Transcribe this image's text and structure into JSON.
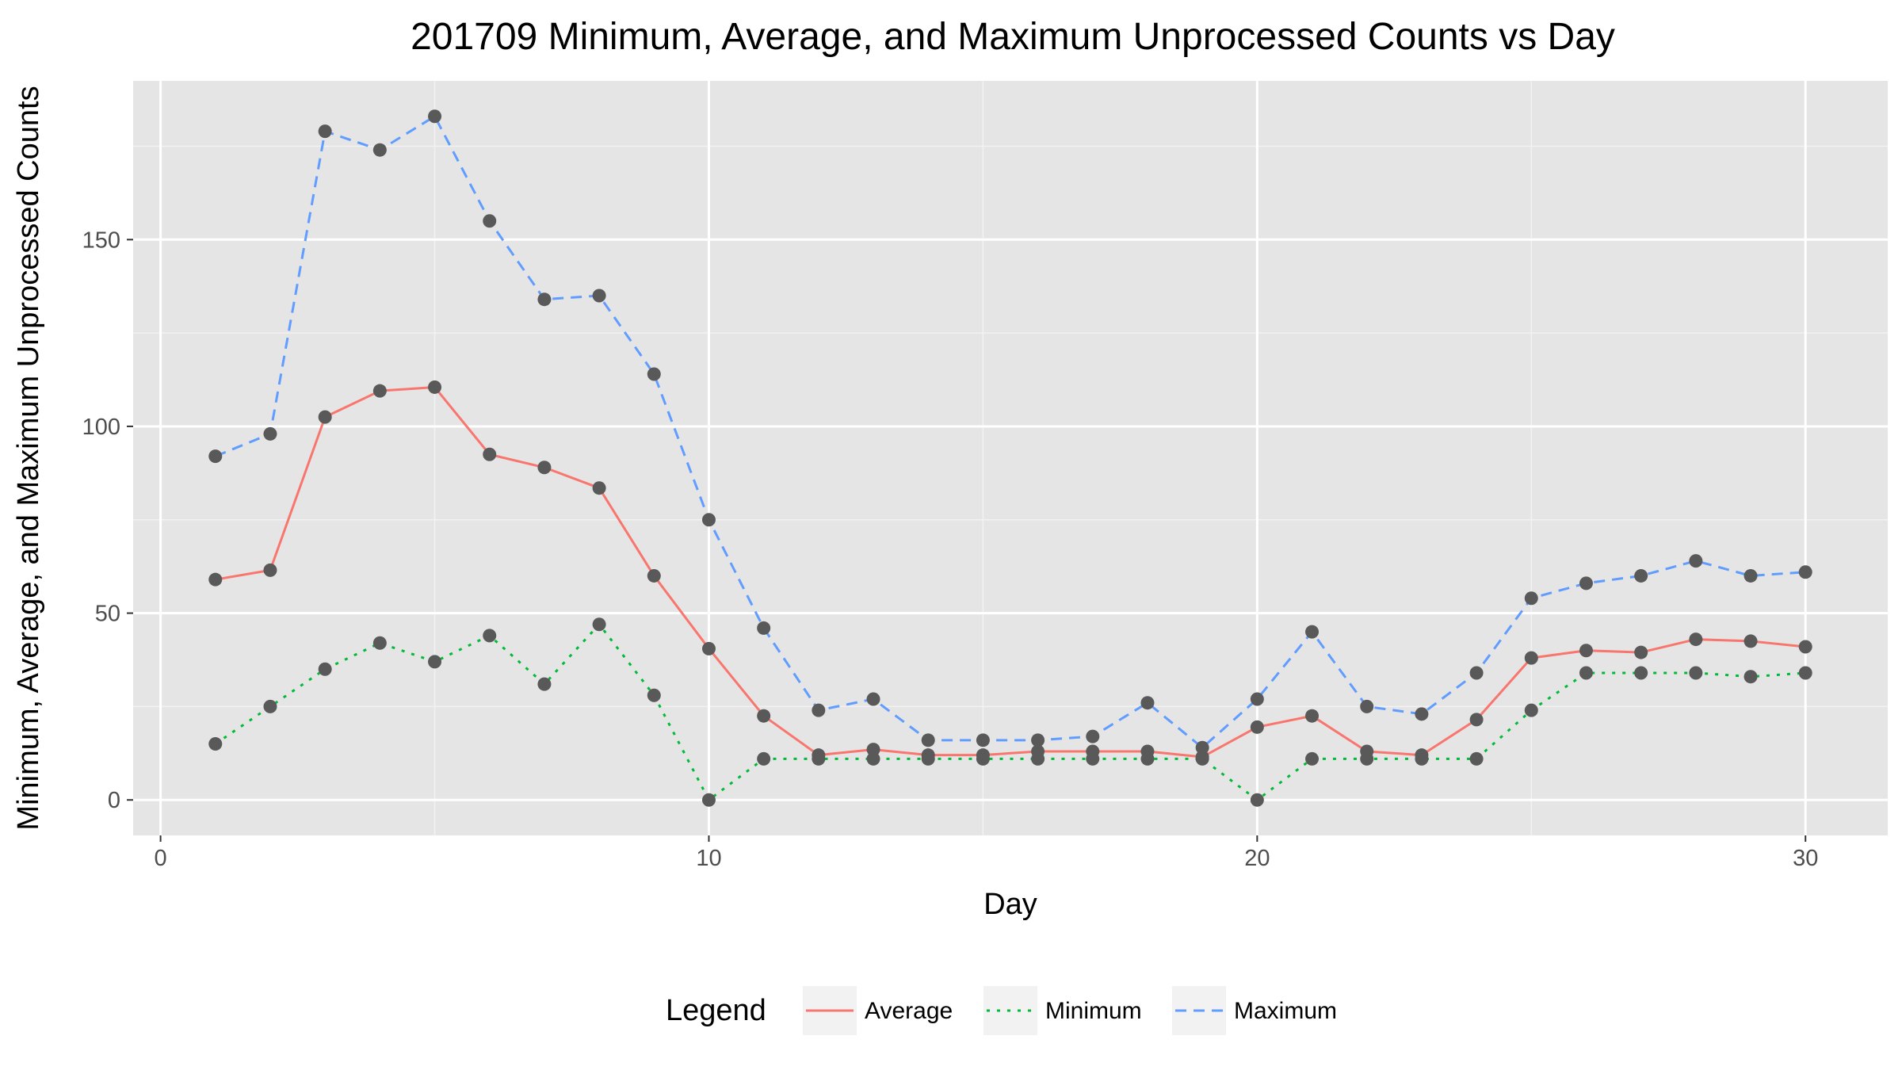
{
  "chart_data": {
    "type": "line",
    "title": "201709 Minimum, Average, and Maximum Unprocessed Counts vs Day",
    "xlabel": "Day",
    "ylabel": "Minimum, Average, and Maximum Unprocessed Counts",
    "xlim": [
      -0.5,
      31.5
    ],
    "ylim": [
      -9.5,
      192.5
    ],
    "x_ticks": [
      0,
      10,
      20,
      30
    ],
    "y_ticks": [
      0,
      50,
      100,
      150
    ],
    "grid": true,
    "legend": {
      "title": "Legend",
      "position": "bottom"
    },
    "x": [
      1,
      2,
      3,
      4,
      5,
      6,
      7,
      8,
      9,
      10,
      11,
      12,
      13,
      14,
      15,
      16,
      17,
      18,
      19,
      20,
      21,
      22,
      23,
      24,
      25,
      26,
      27,
      28,
      29,
      30
    ],
    "series": [
      {
        "name": "Average",
        "color": "#F8766D",
        "dash": "solid",
        "values": [
          59,
          61.5,
          102.5,
          109.5,
          110.5,
          92.5,
          89,
          83.5,
          60,
          40.5,
          22.5,
          12,
          13.5,
          12,
          12,
          13,
          13,
          13,
          11.5,
          19.5,
          22.5,
          13,
          12,
          21.5,
          38,
          40,
          39.5,
          43,
          42.5,
          41
        ]
      },
      {
        "name": "Minimum",
        "color": "#00BA38",
        "dash": "dotted",
        "values": [
          15,
          25,
          35,
          42,
          37,
          44,
          31,
          47,
          28,
          0,
          11,
          11,
          11,
          11,
          11,
          11,
          11,
          11,
          11,
          0,
          11,
          11,
          11,
          11,
          24,
          34,
          34,
          34,
          33,
          34
        ]
      },
      {
        "name": "Maximum",
        "color": "#619CFF",
        "dash": "dashed",
        "values": [
          92,
          98,
          179,
          174,
          183,
          155,
          134,
          135,
          114,
          75,
          46,
          24,
          27,
          16,
          16,
          16,
          17,
          26,
          14,
          27,
          45,
          25,
          23,
          34,
          54,
          58,
          60,
          64,
          60,
          61
        ]
      }
    ]
  }
}
